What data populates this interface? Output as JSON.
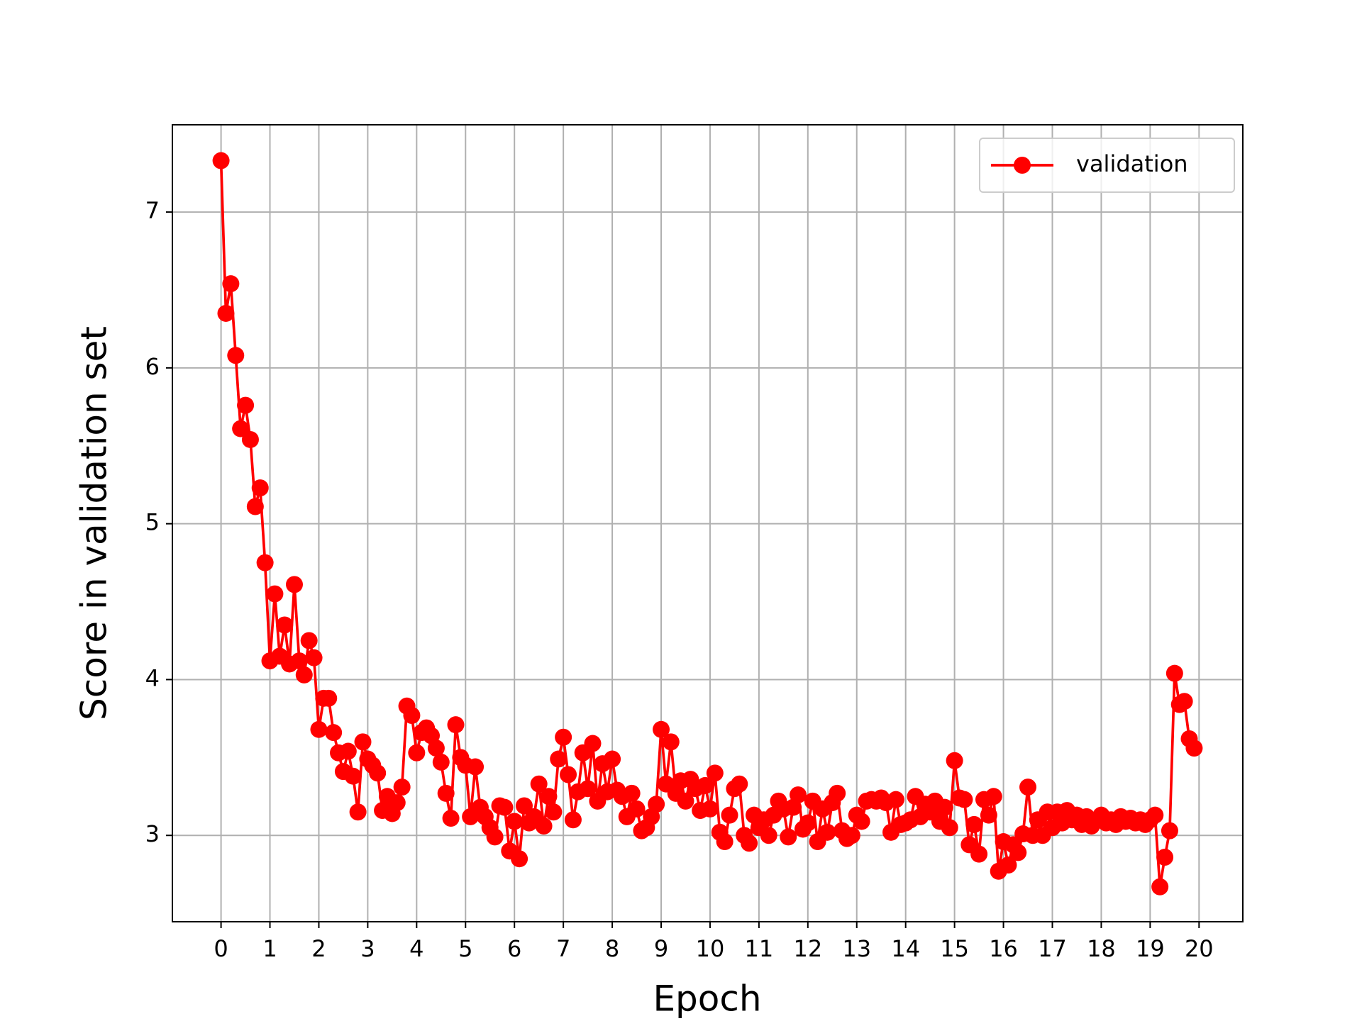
{
  "chart_data": {
    "type": "line",
    "xlabel": "Epoch",
    "ylabel": "Score in validation set",
    "x": [
      0,
      0.1,
      0.2,
      0.3,
      0.4,
      0.5,
      0.6,
      0.7,
      0.8,
      0.9,
      1,
      1.1,
      1.2,
      1.3,
      1.4,
      1.5,
      1.6,
      1.7,
      1.8,
      1.9,
      2,
      2.1,
      2.2,
      2.3,
      2.4,
      2.5,
      2.6,
      2.7,
      2.8,
      2.9,
      3,
      3.1,
      3.2,
      3.3,
      3.4,
      3.5,
      3.6,
      3.7,
      3.8,
      3.9,
      4,
      4.1,
      4.2,
      4.3,
      4.4,
      4.5,
      4.6,
      4.7,
      4.8,
      4.9,
      5,
      5.1,
      5.2,
      5.3,
      5.4,
      5.5,
      5.6,
      5.7,
      5.8,
      5.9,
      6,
      6.1,
      6.2,
      6.3,
      6.4,
      6.5,
      6.6,
      6.7,
      6.8,
      6.9,
      7,
      7.1,
      7.2,
      7.3,
      7.4,
      7.5,
      7.6,
      7.7,
      7.8,
      7.9,
      8,
      8.1,
      8.2,
      8.3,
      8.4,
      8.5,
      8.6,
      8.7,
      8.8,
      8.9,
      9,
      9.1,
      9.2,
      9.3,
      9.4,
      9.5,
      9.6,
      9.7,
      9.8,
      9.9,
      10,
      10.1,
      10.2,
      10.3,
      10.4,
      10.5,
      10.6,
      10.7,
      10.8,
      10.9,
      11,
      11.1,
      11.2,
      11.3,
      11.4,
      11.5,
      11.6,
      11.7,
      11.8,
      11.9,
      12,
      12.1,
      12.2,
      12.3,
      12.4,
      12.5,
      12.6,
      12.7,
      12.8,
      12.9,
      13,
      13.1,
      13.2,
      13.3,
      13.4,
      13.5,
      13.6,
      13.7,
      13.8,
      13.9,
      14,
      14.1,
      14.2,
      14.3,
      14.4,
      14.5,
      14.6,
      14.7,
      14.8,
      14.9,
      15,
      15.1,
      15.2,
      15.3,
      15.4,
      15.5,
      15.6,
      15.7,
      15.8,
      15.9,
      16,
      16.1,
      16.2,
      16.3,
      16.4,
      16.5,
      16.6,
      16.7,
      16.8,
      16.9,
      17,
      17.1,
      17.2,
      17.3,
      17.4,
      17.5,
      17.6,
      17.7,
      17.8,
      17.9,
      18,
      18.1,
      18.2,
      18.3,
      18.4,
      18.5,
      18.6,
      18.7,
      18.8,
      18.9,
      19,
      19.1,
      19.2,
      19.3,
      19.4,
      19.5,
      19.6,
      19.7,
      19.8,
      19.9
    ],
    "series": [
      {
        "name": "validation",
        "color": "#ff0000",
        "marker": "o",
        "values": [
          7.33,
          6.35,
          6.54,
          6.08,
          5.61,
          5.76,
          5.54,
          5.11,
          5.23,
          4.75,
          4.12,
          4.55,
          4.15,
          4.35,
          4.1,
          4.61,
          4.12,
          4.03,
          4.25,
          4.14,
          3.68,
          3.88,
          3.88,
          3.66,
          3.53,
          3.41,
          3.54,
          3.38,
          3.15,
          3.6,
          3.49,
          3.45,
          3.4,
          3.16,
          3.25,
          3.14,
          3.21,
          3.31,
          3.83,
          3.77,
          3.53,
          3.66,
          3.69,
          3.64,
          3.56,
          3.47,
          3.27,
          3.11,
          3.71,
          3.5,
          3.45,
          3.12,
          3.44,
          3.18,
          3.12,
          3.05,
          2.99,
          3.19,
          3.18,
          2.9,
          3.09,
          2.85,
          3.19,
          3.08,
          3.12,
          3.33,
          3.06,
          3.25,
          3.15,
          3.49,
          3.63,
          3.39,
          3.1,
          3.28,
          3.53,
          3.3,
          3.59,
          3.22,
          3.46,
          3.28,
          3.49,
          3.29,
          3.25,
          3.12,
          3.27,
          3.17,
          3.03,
          3.05,
          3.12,
          3.2,
          3.68,
          3.33,
          3.6,
          3.27,
          3.35,
          3.22,
          3.36,
          3.3,
          3.16,
          3.32,
          3.17,
          3.4,
          3.02,
          2.96,
          3.13,
          3.3,
          3.33,
          3.0,
          2.95,
          3.13,
          3.05,
          3.1,
          3.0,
          3.13,
          3.22,
          3.17,
          2.99,
          3.18,
          3.26,
          3.04,
          3.08,
          3.22,
          2.96,
          3.17,
          3.02,
          3.21,
          3.27,
          3.03,
          2.98,
          3.0,
          3.13,
          3.09,
          3.22,
          3.23,
          3.22,
          3.24,
          3.21,
          3.02,
          3.23,
          3.07,
          3.08,
          3.1,
          3.25,
          3.12,
          3.2,
          3.15,
          3.22,
          3.09,
          3.18,
          3.05,
          3.48,
          3.24,
          3.23,
          2.94,
          3.07,
          2.88,
          3.23,
          3.13,
          3.25,
          2.77,
          2.96,
          2.81,
          2.94,
          2.89,
          3.01,
          3.31,
          3.0,
          3.1,
          3.0,
          3.15,
          3.05,
          3.15,
          3.08,
          3.16,
          3.1,
          3.13,
          3.07,
          3.12,
          3.06,
          3.1,
          3.13,
          3.08,
          3.1,
          3.07,
          3.12,
          3.09,
          3.11,
          3.08,
          3.1,
          3.07,
          3.1,
          3.13,
          2.67,
          2.86,
          3.03,
          4.04,
          3.84,
          3.86,
          3.62,
          3.56
        ]
      }
    ],
    "xlim": [
      -0.995,
      20.895
    ],
    "ylim": [
      2.446,
      7.56
    ],
    "xticks": [
      0,
      1,
      2,
      3,
      4,
      5,
      6,
      7,
      8,
      9,
      10,
      11,
      12,
      13,
      14,
      15,
      16,
      17,
      18,
      19,
      20
    ],
    "yticks": [
      3,
      4,
      5,
      6,
      7
    ],
    "grid": true,
    "legend": "upper right"
  }
}
